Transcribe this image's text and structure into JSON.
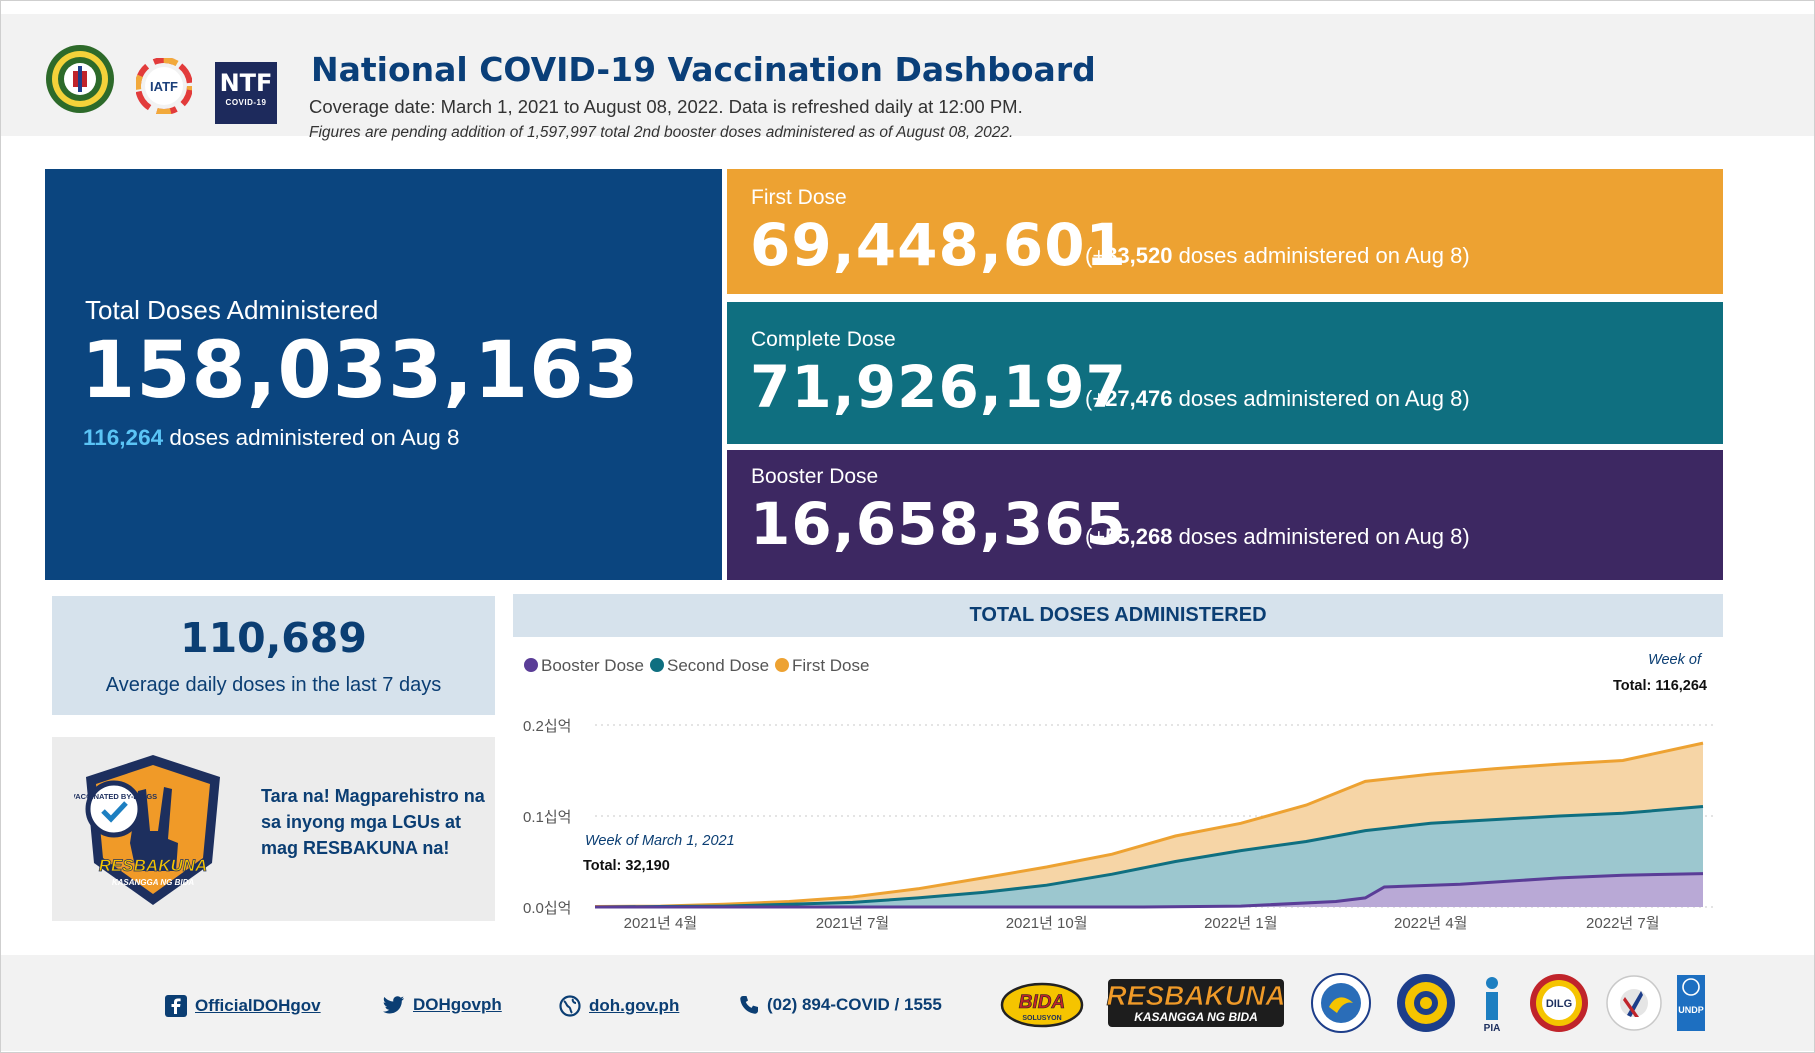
{
  "header": {
    "title": "National COVID-19 Vaccination Dashboard",
    "coverage": "Coverage date: March 1, 2021 to August 08, 2022. Data is refreshed daily at 12:00 PM.",
    "pending_note": "Figures are pending addition of 1,597,997 total 2nd booster doses administered as of August 08, 2022.",
    "logos": {
      "iatf_text": "IATF",
      "ntf_big": "NTF",
      "ntf_small": "COVID-19"
    }
  },
  "total": {
    "label": "Total Doses Administered",
    "value": "158,033,163",
    "daily_count": "116,264",
    "daily_suffix": "doses administered on Aug 8"
  },
  "first_dose": {
    "label": "First Dose",
    "value": "69,448,601",
    "sub_prefix": "(+",
    "sub_count": "33,520",
    "sub_suffix": "doses administered on Aug 8)"
  },
  "complete_dose": {
    "label": "Complete Dose",
    "value": "71,926,197",
    "sub_prefix": "(+",
    "sub_count": "27,476",
    "sub_suffix": "doses administered on Aug 8)"
  },
  "booster_dose": {
    "label": "Booster Dose",
    "value": "16,658,365",
    "sub_prefix": "(+",
    "sub_count": "55,268",
    "sub_suffix": "doses administered on Aug 8)"
  },
  "average": {
    "value": "110,689",
    "label": "Average daily doses in the last 7 days"
  },
  "promo": {
    "text": "Tara na! Magparehistro na sa inyong mga LGUs at mag RESBAKUNA na!",
    "badge_text": "RESBAKUNA",
    "badge_sub": "KASANGGA NG BIDA",
    "badge_ring": "VACCINATED BY-DIAGS"
  },
  "colors": {
    "first": "#eda232",
    "second": "#0f6f80",
    "booster": "#3d2862",
    "navy": "#0b457f",
    "first_area": "#f6d5a6",
    "second_area": "#9cc7cf",
    "booster_area": "#b9a9d6",
    "booster_line": "#5a3d97"
  },
  "chart_data": {
    "type": "area",
    "title": "TOTAL DOSES ADMINISTERED",
    "stacked": true,
    "legend": [
      "Booster Dose",
      "Second Dose",
      "First Dose"
    ],
    "y_ticks": [
      "0.0십억",
      "0.1십억",
      "0.2십억"
    ],
    "y_tick_values": [
      0,
      0.1,
      0.2
    ],
    "ylim": [
      0,
      0.2
    ],
    "x_tick_labels": [
      "2021년 4월",
      "2021년 7월",
      "2021년 10월",
      "2022년 1월",
      "2022년 4월",
      "2022년 7월"
    ],
    "x_tick_dates": [
      "2021-04-01",
      "2021-07-01",
      "2021-10-01",
      "2022-01-01",
      "2022-04-01",
      "2022-07-01"
    ],
    "x_range": [
      "2021-03-01",
      "2022-08-08"
    ],
    "annotation_start": {
      "week_label": "Week of March 1, 2021",
      "total_label": "Total: 32,190"
    },
    "annotation_end": {
      "week_label": "Week of",
      "total_label": "Total: 116,264"
    },
    "series": [
      {
        "name": "Booster Dose",
        "dates": [
          "2021-03-01",
          "2021-11-15",
          "2022-01-01",
          "2022-02-15",
          "2022-03-01",
          "2022-03-10",
          "2022-04-15",
          "2022-06-01",
          "2022-07-01",
          "2022-08-08"
        ],
        "values": [
          0,
          0,
          0.001,
          0.006,
          0.01,
          0.022,
          0.025,
          0.032,
          0.035,
          0.0367
        ]
      },
      {
        "name": "Second Dose",
        "dates": [
          "2021-03-01",
          "2021-04-01",
          "2021-05-01",
          "2021-06-01",
          "2021-07-01",
          "2021-08-01",
          "2021-09-01",
          "2021-10-01",
          "2021-11-01",
          "2021-12-01",
          "2022-01-01",
          "2022-02-01",
          "2022-03-01",
          "2022-04-01",
          "2022-05-01",
          "2022-06-01",
          "2022-07-01",
          "2022-08-08"
        ],
        "values": [
          0,
          0.0005,
          0.001,
          0.003,
          0.005,
          0.01,
          0.016,
          0.024,
          0.036,
          0.05,
          0.062,
          0.072,
          0.084,
          0.092,
          0.096,
          0.1,
          0.103,
          0.1104
        ]
      },
      {
        "name": "First Dose",
        "dates": [
          "2021-03-01",
          "2021-04-01",
          "2021-05-01",
          "2021-06-01",
          "2021-07-01",
          "2021-08-01",
          "2021-09-01",
          "2021-10-01",
          "2021-11-01",
          "2021-12-01",
          "2022-01-01",
          "2022-02-01",
          "2022-03-01",
          "2022-04-01",
          "2022-05-01",
          "2022-06-01",
          "2022-07-01",
          "2022-08-08"
        ],
        "values": [
          0.0005,
          0.001,
          0.003,
          0.006,
          0.011,
          0.02,
          0.032,
          0.044,
          0.058,
          0.078,
          0.092,
          0.112,
          0.138,
          0.146,
          0.152,
          0.157,
          0.161,
          0.1801
        ]
      }
    ]
  },
  "footer": {
    "facebook": "OfficialDOHgov",
    "twitter": "DOHgovph",
    "web": "doh.gov.ph",
    "phone": "(02) 894-COVID / 1555",
    "logo_bida": "BIDA",
    "logo_bida_sub": "SOLUSYON",
    "logo_resbakuna": "RESBAKUNA",
    "logo_resbakuna_sub": "KASANGGA NG BIDA",
    "logo_pia": "PIA",
    "logo_dilg": "DILG",
    "logo_undp": "UNDP"
  }
}
